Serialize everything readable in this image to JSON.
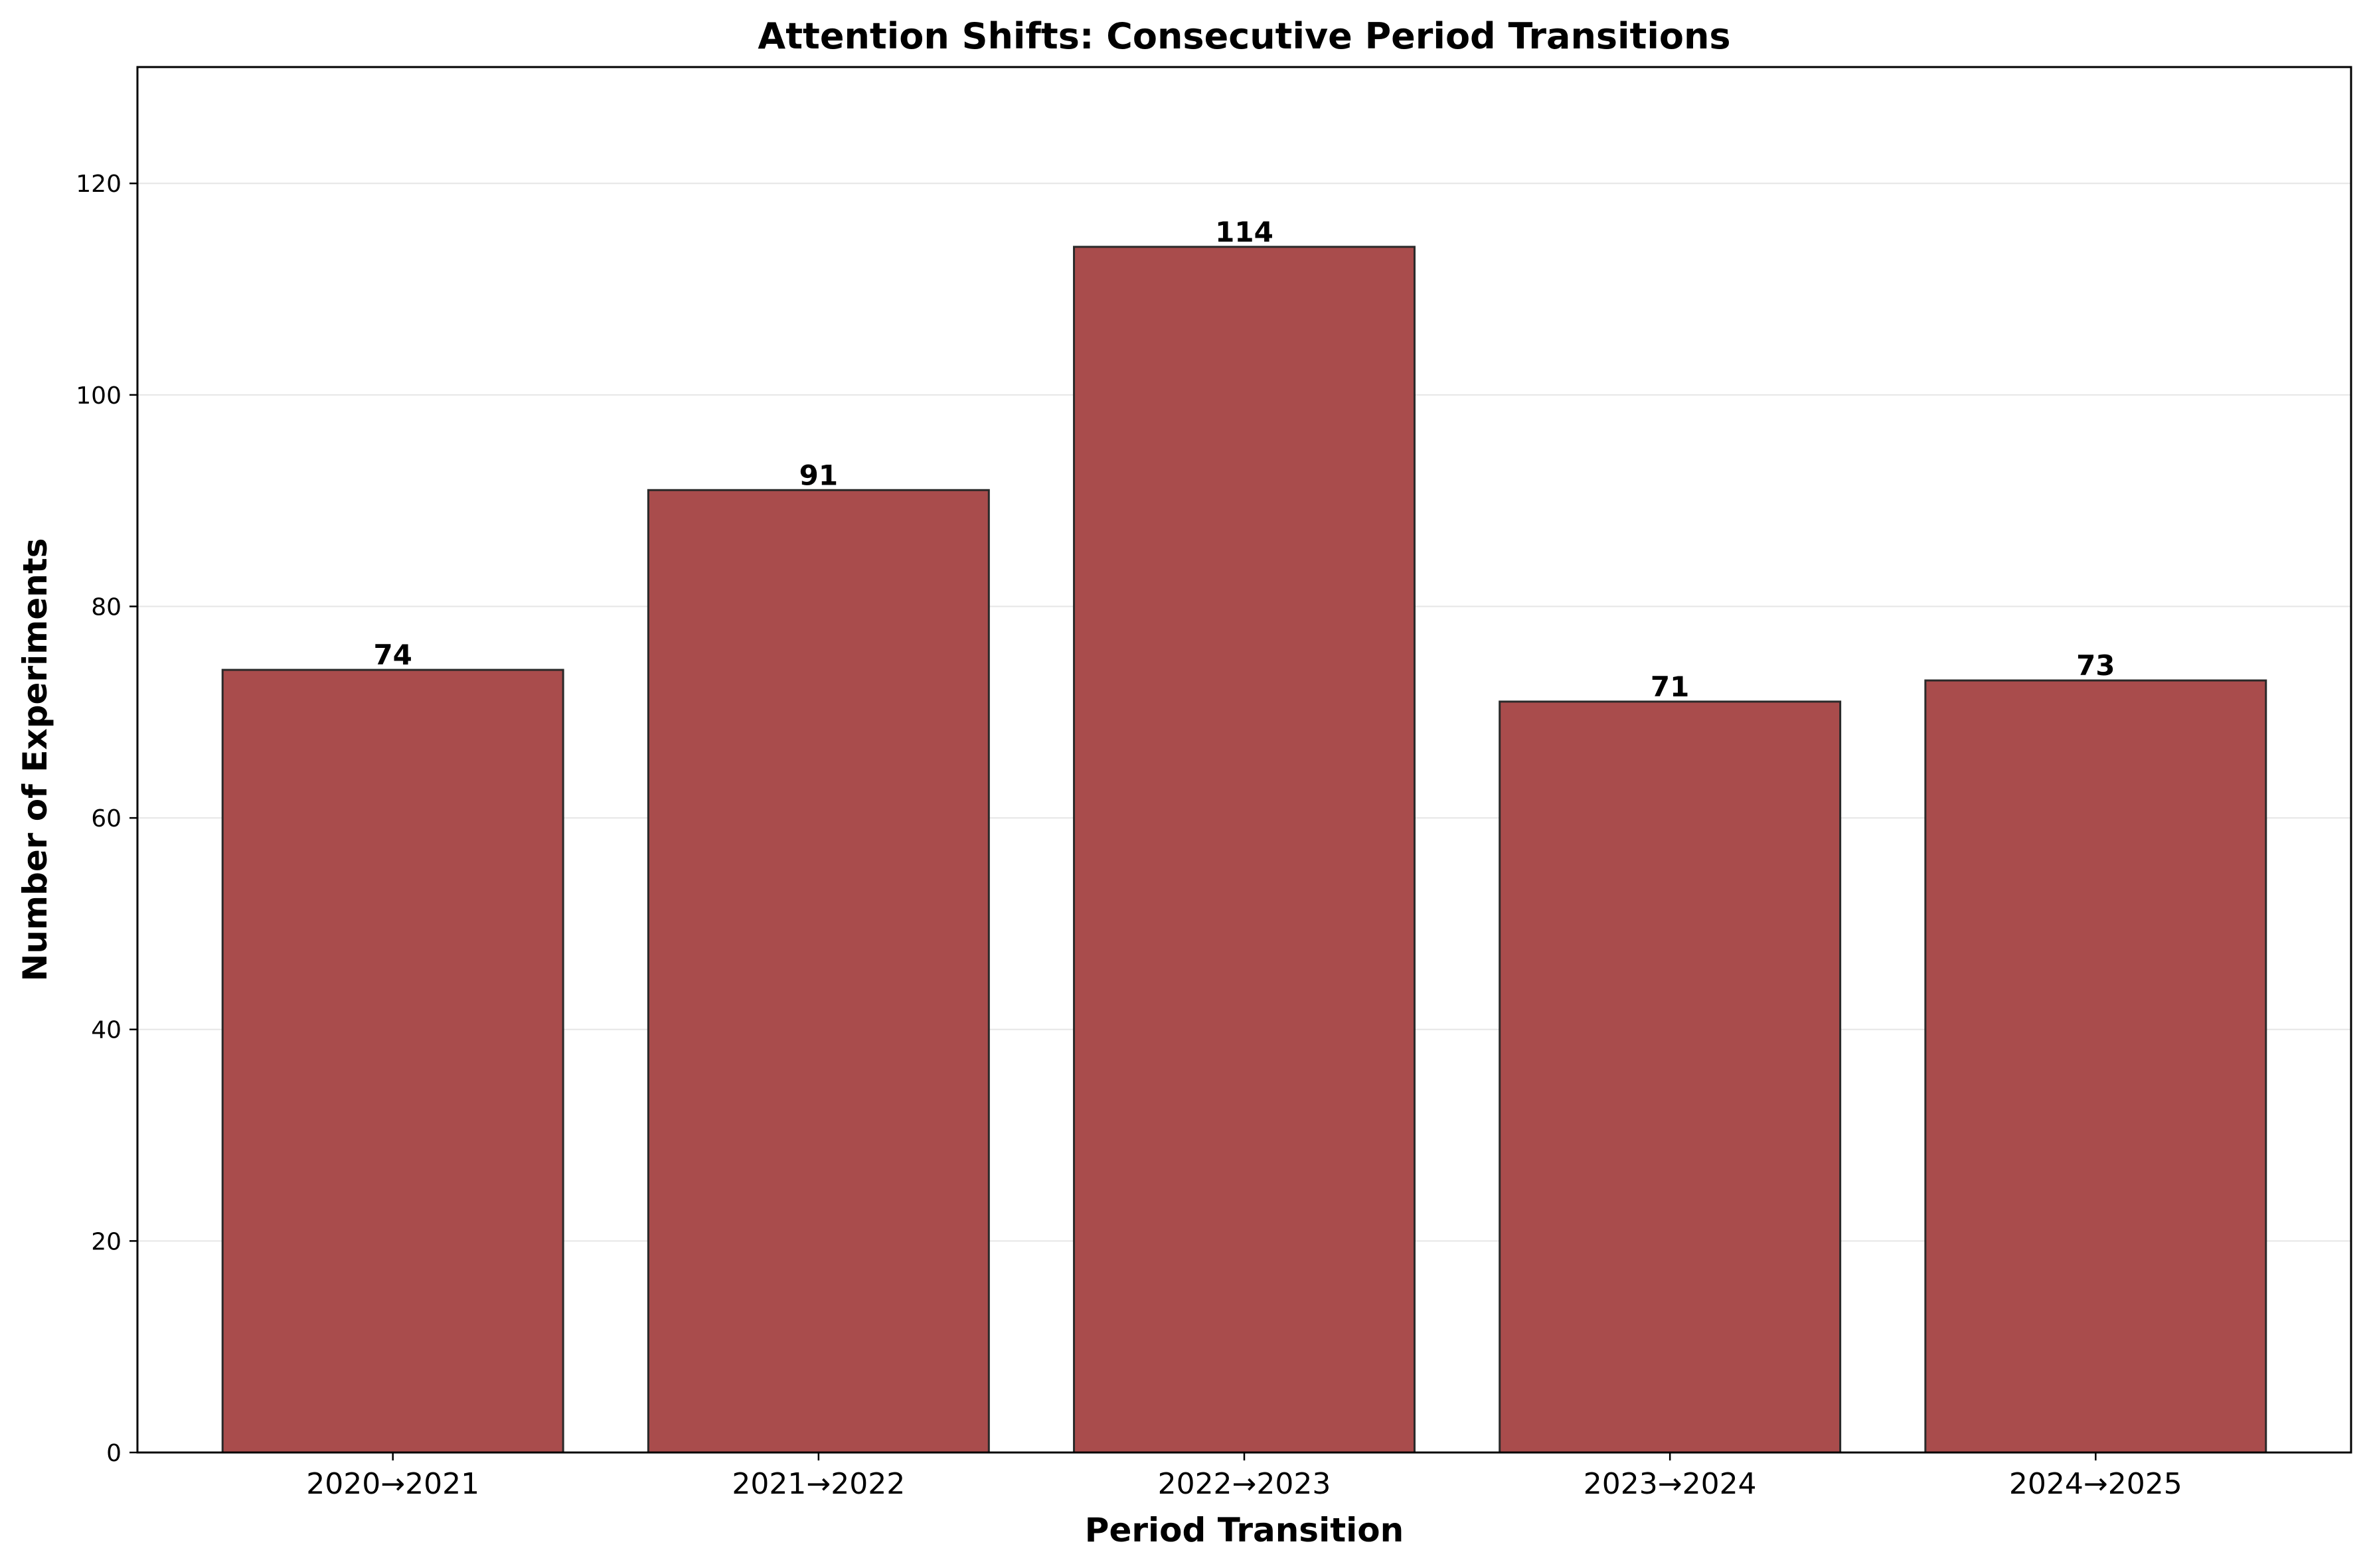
{
  "chart_data": {
    "type": "bar",
    "title": "Attention Shifts: Consecutive Period Transitions",
    "xlabel": "Period Transition",
    "ylabel": "Number of Experiments",
    "categories": [
      "2020→2021",
      "2021→2022",
      "2022→2023",
      "2023→2024",
      "2024→2025"
    ],
    "values": [
      74,
      91,
      114,
      71,
      73
    ],
    "ylim": [
      0,
      131
    ],
    "yticks": [
      0,
      20,
      40,
      60,
      80,
      100,
      120
    ],
    "grid": "y",
    "bar_color": "#a94c4c",
    "edge_color": "#2a2a2a",
    "grid_color": "#e6e6e6"
  }
}
